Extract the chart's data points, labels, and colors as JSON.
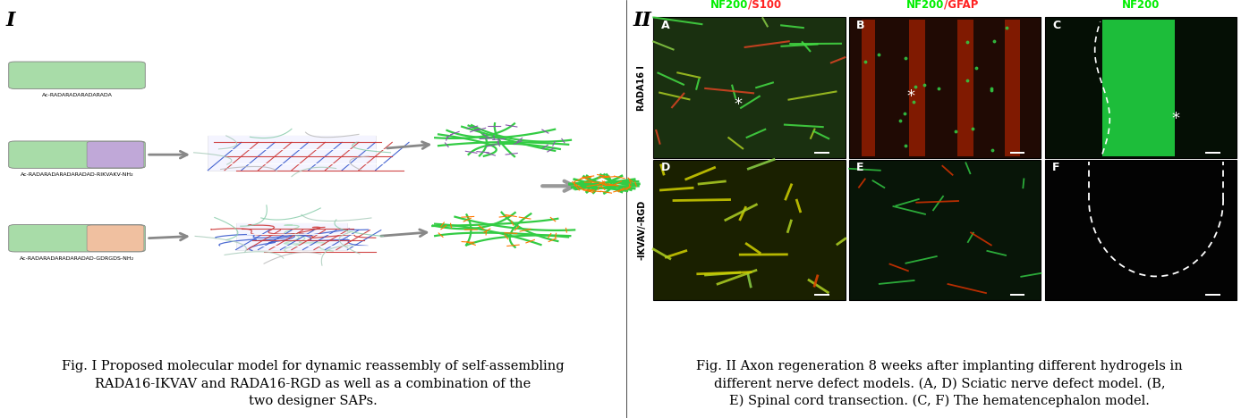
{
  "fig_width": 13.87,
  "fig_height": 4.68,
  "background_color": "#ffffff",
  "panel_I_label": "I",
  "panel_II_label": "II",
  "caption_I": "Fig. I Proposed molecular model for dynamic reassembly of self-assembling\nRADA16-IKVAV and RADA16-RGD as well as a combination of the\ntwo designer SAPs.",
  "caption_II": "Fig. II Axon regeneration 8 weeks after implanting different hydrogels in\ndifferent nerve defect models. (A, D) Sciatic nerve defect model. (B,\nE) Spinal cord transection. (C, F) The hematencephalon model.",
  "label_fontsize": 16,
  "caption_fontsize": 10.5,
  "peptide_labels": [
    "Ac-RADARADARADARADA",
    "Ac-RADARADARADARADAD-RIKVAKV-NH₂",
    "Ac-RADARADARADARADAD-GDRGDS-NH₂"
  ],
  "row_labels": [
    "RADA16 I",
    "-IKVAV/-RGD"
  ],
  "panel_letters": [
    "A",
    "B",
    "C",
    "D",
    "E",
    "F"
  ],
  "col_label_nf200": "NF200",
  "col_label_s100": "/S100",
  "col_label_gfap": "/GFAP",
  "col_label_green_color": "#00ee00",
  "col_label_red_color": "#ff2222",
  "img_bg_colors": [
    "#1a3010",
    "#200a04",
    "#050f05",
    "#1a2000",
    "#081508",
    "#030303"
  ],
  "fiber_green": "#33cc44",
  "fiber_orange": "#ff7700",
  "fiber_purple": "#8855aa",
  "grid_blue": "#3355cc",
  "grid_red": "#cc3333",
  "grid_white": "#ffffff",
  "peptide_green": "#a8dca8",
  "peptide_purple": "#c0a8d8",
  "peptide_orange": "#f0c0a0",
  "arrow_color": "#888888",
  "scale_bar_color": "#ffffff",
  "star_color": "#ffffff"
}
